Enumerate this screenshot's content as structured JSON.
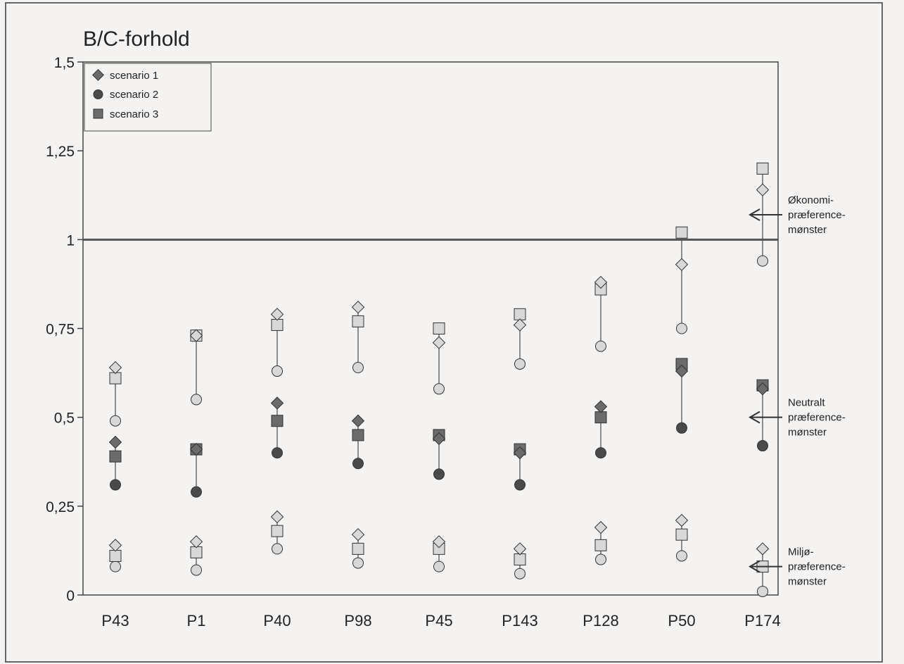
{
  "chart_data": {
    "type": "scatter",
    "title": "B/C-forhold",
    "xlabel": "",
    "ylabel": "",
    "ylim": [
      0,
      1.5
    ],
    "yticks": [
      {
        "value": 0,
        "label": "0"
      },
      {
        "value": 0.25,
        "label": "0,25"
      },
      {
        "value": 0.5,
        "label": "0,5"
      },
      {
        "value": 0.75,
        "label": "0,75"
      },
      {
        "value": 1,
        "label": "1"
      },
      {
        "value": 1.25,
        "label": "1,25"
      },
      {
        "value": 1.5,
        "label": "1,5"
      }
    ],
    "categories": [
      "P43",
      "P1",
      "P40",
      "P98",
      "P45",
      "P143",
      "P128",
      "P50",
      "P174"
    ],
    "reference_line": 1,
    "grid": false,
    "legend": {
      "placement": "top-left",
      "entries": [
        "scenario 1",
        "scenario 2",
        "scenario 3"
      ]
    },
    "groups": [
      {
        "annotation": [
          "Økonomi-",
          "præference-",
          "mønster"
        ],
        "annotation_y": 1.07,
        "fill": "#d8d8d8",
        "scenario1": [
          0.64,
          0.73,
          0.79,
          0.81,
          0.71,
          0.76,
          0.88,
          0.93,
          1.14
        ],
        "scenario2": [
          0.49,
          0.55,
          0.63,
          0.64,
          0.58,
          0.65,
          0.7,
          0.75,
          0.94
        ],
        "scenario3": [
          0.61,
          0.73,
          0.76,
          0.77,
          0.75,
          0.79,
          0.86,
          1.02,
          1.2
        ]
      },
      {
        "annotation": [
          "Neutralt",
          "præference-",
          "mønster"
        ],
        "annotation_y": 0.5,
        "fill": "#5a5a5a",
        "scenario1": [
          0.43,
          0.41,
          0.54,
          0.49,
          0.44,
          0.4,
          0.53,
          0.63,
          0.58
        ],
        "scenario2": [
          0.31,
          0.29,
          0.4,
          0.37,
          0.34,
          0.31,
          0.4,
          0.47,
          0.42
        ],
        "scenario3": [
          0.39,
          0.41,
          0.49,
          0.45,
          0.45,
          0.41,
          0.5,
          0.65,
          0.59
        ]
      },
      {
        "annotation": [
          "Miljø-",
          "præference-",
          "mønster"
        ],
        "annotation_y": 0.08,
        "fill": "#d8d8d8",
        "scenario1": [
          0.14,
          0.15,
          0.22,
          0.17,
          0.15,
          0.13,
          0.19,
          0.21,
          0.13
        ],
        "scenario2": [
          0.08,
          0.07,
          0.13,
          0.09,
          0.08,
          0.06,
          0.1,
          0.11,
          0.01
        ],
        "scenario3": [
          0.11,
          0.12,
          0.18,
          0.13,
          0.13,
          0.1,
          0.14,
          0.17,
          0.08
        ]
      }
    ]
  }
}
